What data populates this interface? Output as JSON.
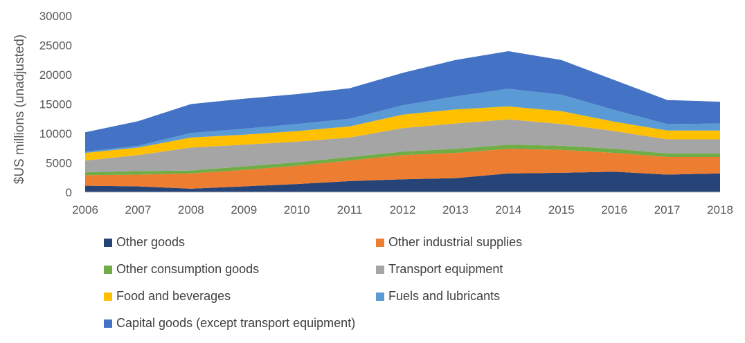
{
  "chart_data": {
    "type": "area",
    "stacked": true,
    "title": "",
    "xlabel": "",
    "ylabel": "$US millions (unadjusted)",
    "ylim": [
      0,
      30000
    ],
    "yticks": [
      0,
      5000,
      10000,
      15000,
      20000,
      25000,
      30000
    ],
    "x": [
      "2006",
      "2007",
      "2008",
      "2009",
      "2010",
      "2011",
      "2012",
      "2013",
      "2014",
      "2015",
      "2016",
      "2017",
      "2018"
    ],
    "grid": false,
    "legend_position": "bottom",
    "series": [
      {
        "name": "Other goods",
        "color": "#264478",
        "values": [
          1100,
          1000,
          600,
          1000,
          1400,
          1900,
          2200,
          2400,
          3200,
          3300,
          3500,
          3000,
          3200
        ]
      },
      {
        "name": "Other industrial supplies",
        "color": "#ED7D31",
        "values": [
          1800,
          2000,
          2600,
          2800,
          3100,
          3500,
          4100,
          4300,
          4200,
          3900,
          3200,
          3000,
          2800
        ]
      },
      {
        "name": "Other consumption goods",
        "color": "#70AD47",
        "values": [
          500,
          600,
          500,
          600,
          600,
          600,
          600,
          700,
          700,
          700,
          700,
          600,
          600
        ]
      },
      {
        "name": "Transport equipment",
        "color": "#A5A5A5",
        "values": [
          2000,
          2700,
          3900,
          3700,
          3500,
          3300,
          4000,
          4300,
          4300,
          3700,
          3000,
          2400,
          2400
        ]
      },
      {
        "name": "Food and beverages",
        "color": "#FFC000",
        "values": [
          1300,
          1300,
          1700,
          1700,
          1800,
          1900,
          2300,
          2400,
          2200,
          2200,
          1600,
          1500,
          1500
        ]
      },
      {
        "name": "Fuels and lubricants",
        "color": "#5B9BD5",
        "values": [
          200,
          300,
          800,
          1000,
          1200,
          1300,
          1600,
          2200,
          3000,
          2800,
          2000,
          1100,
          1200
        ]
      },
      {
        "name": "Capital goods (except transport equipment)",
        "color": "#4472C4",
        "values": [
          3300,
          4200,
          4900,
          5100,
          5100,
          5200,
          5500,
          6200,
          6400,
          5900,
          5100,
          4100,
          3700
        ]
      }
    ]
  }
}
